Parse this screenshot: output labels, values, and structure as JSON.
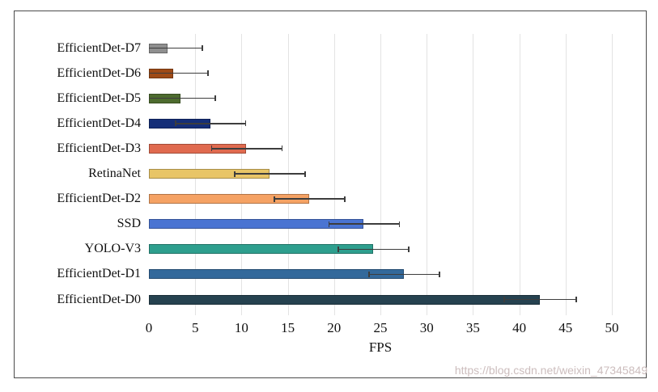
{
  "watermark": "https://blog.csdn.net/weixin_47345849",
  "chart_data": {
    "type": "bar",
    "orientation": "horizontal",
    "title": "",
    "xlabel": "FPS",
    "ylabel": "",
    "xlim": [
      0,
      50
    ],
    "xticks": [
      0,
      5,
      10,
      15,
      20,
      25,
      30,
      35,
      40,
      45,
      50
    ],
    "grid": true,
    "legend": "none",
    "categories": [
      "EfficientDet-D7",
      "EfficientDet-D6",
      "EfficientDet-D5",
      "EfficientDet-D4",
      "EfficientDet-D3",
      "RetinaNet",
      "EfficientDet-D2",
      "SSD",
      "YOLO-V3",
      "EfficientDet-D1",
      "EfficientDet-D0"
    ],
    "values": [
      2.0,
      2.6,
      3.4,
      6.6,
      10.5,
      13.0,
      17.3,
      23.2,
      24.2,
      27.5,
      42.2
    ],
    "errors": [
      3.7,
      3.7,
      3.7,
      3.8,
      3.8,
      3.8,
      3.8,
      3.8,
      3.8,
      3.8,
      3.9
    ],
    "bar_colors": [
      "#8f8f8f",
      "#9e4a16",
      "#4d6b2e",
      "#152e78",
      "#e06a4f",
      "#e8c567",
      "#f5a264",
      "#4a74d2",
      "#2e9f8e",
      "#33699b",
      "#264250"
    ],
    "gridline_color": "#e3e3e3",
    "errorbar_color": "#3d3d3d",
    "frame_border_color": "#4b4b4b"
  }
}
